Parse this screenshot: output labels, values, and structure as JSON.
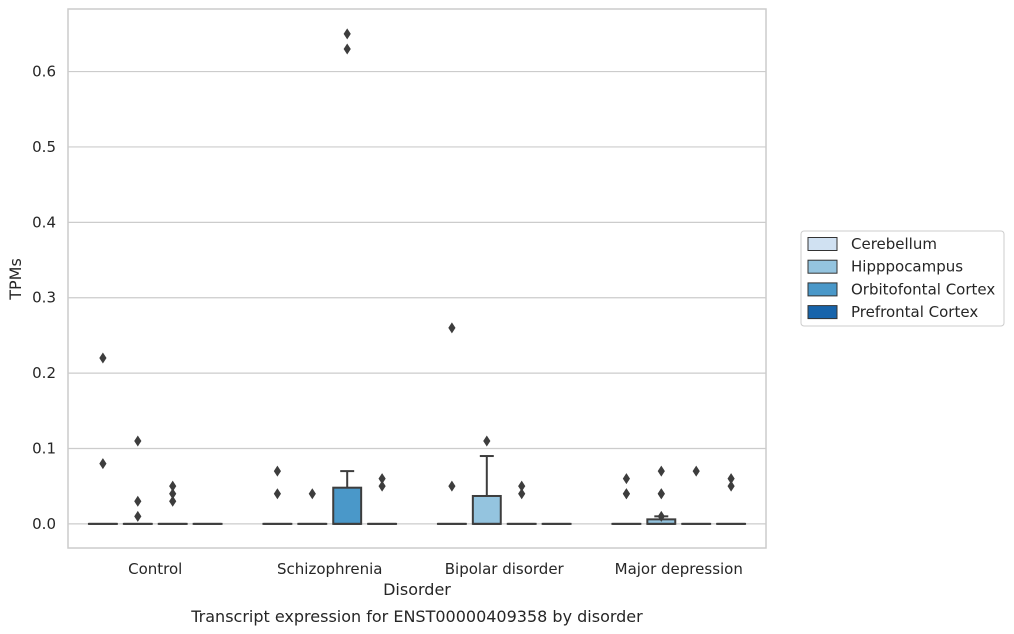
{
  "chart_data": {
    "type": "box",
    "title": "",
    "caption": "Transcript expression for ENST00000409358 by disorder",
    "xlabel": "Disorder",
    "ylabel": "TPMs",
    "ylim": [
      -0.032,
      0.683
    ],
    "yticks": [
      0.0,
      0.1,
      0.2,
      0.3,
      0.4,
      0.5,
      0.6
    ],
    "ytick_labels": [
      "0.0",
      "0.1",
      "0.2",
      "0.3",
      "0.4",
      "0.5",
      "0.6"
    ],
    "grid": "horizontal",
    "legend_position": "right",
    "categories": [
      "Control",
      "Schizophrenia",
      "Bipolar disorder",
      "Major depression"
    ],
    "series": [
      {
        "name": "Cerebellum",
        "color": "#d0e1f2",
        "boxes": [
          {
            "q1": 0,
            "median": 0,
            "q3": 0,
            "whisker_low": 0,
            "whisker_high": 0,
            "outliers": [
              0.22,
              0.08
            ]
          },
          {
            "q1": 0,
            "median": 0,
            "q3": 0,
            "whisker_low": 0,
            "whisker_high": 0,
            "outliers": [
              0.07,
              0.04
            ]
          },
          {
            "q1": 0,
            "median": 0,
            "q3": 0,
            "whisker_low": 0,
            "whisker_high": 0,
            "outliers": [
              0.26,
              0.05
            ]
          },
          {
            "q1": 0,
            "median": 0,
            "q3": 0,
            "whisker_low": 0,
            "whisker_high": 0,
            "outliers": [
              0.06,
              0.04,
              0.04
            ]
          }
        ]
      },
      {
        "name": "Hipppocampus",
        "color": "#94c4df",
        "boxes": [
          {
            "q1": 0,
            "median": 0,
            "q3": 0,
            "whisker_low": 0,
            "whisker_high": 0,
            "outliers": [
              0.11,
              0.03,
              0.01
            ]
          },
          {
            "q1": 0,
            "median": 0,
            "q3": 0,
            "whisker_low": 0,
            "whisker_high": 0,
            "outliers": [
              0.04
            ]
          },
          {
            "q1": 0,
            "median": 0,
            "q3": 0.037,
            "whisker_low": 0,
            "whisker_high": 0.09,
            "outliers": [
              0.11
            ]
          },
          {
            "q1": 0,
            "median": 0,
            "q3": 0.006,
            "whisker_low": 0,
            "whisker_high": 0.01,
            "outliers": [
              0.07,
              0.04,
              0.04,
              0.01
            ]
          }
        ]
      },
      {
        "name": "Orbitofontal Cortex",
        "color": "#4a98c9",
        "boxes": [
          {
            "q1": 0,
            "median": 0,
            "q3": 0,
            "whisker_low": 0,
            "whisker_high": 0,
            "outliers": [
              0.05,
              0.04,
              0.03
            ]
          },
          {
            "q1": 0,
            "median": 0,
            "q3": 0.048,
            "whisker_low": 0,
            "whisker_high": 0.07,
            "outliers": [
              0.65,
              0.63
            ]
          },
          {
            "q1": 0,
            "median": 0,
            "q3": 0,
            "whisker_low": 0,
            "whisker_high": 0,
            "outliers": [
              0.05,
              0.04
            ]
          },
          {
            "q1": 0,
            "median": 0,
            "q3": 0,
            "whisker_low": 0,
            "whisker_high": 0,
            "outliers": [
              0.07
            ]
          }
        ]
      },
      {
        "name": "Prefrontal Cortex",
        "color": "#1764ab",
        "boxes": [
          {
            "q1": 0,
            "median": 0,
            "q3": 0,
            "whisker_low": 0,
            "whisker_high": 0,
            "outliers": []
          },
          {
            "q1": 0,
            "median": 0,
            "q3": 0,
            "whisker_low": 0,
            "whisker_high": 0,
            "outliers": [
              0.06,
              0.05
            ]
          },
          {
            "q1": 0,
            "median": 0,
            "q3": 0,
            "whisker_low": 0,
            "whisker_high": 0,
            "outliers": []
          },
          {
            "q1": 0,
            "median": 0,
            "q3": 0,
            "whisker_low": 0,
            "whisker_high": 0,
            "outliers": [
              0.06,
              0.05
            ]
          }
        ]
      }
    ]
  },
  "colors": {
    "grid": "#cccccc",
    "frame": "#cccccc",
    "box_edge": "#3d3d3d",
    "text": "#262626"
  }
}
